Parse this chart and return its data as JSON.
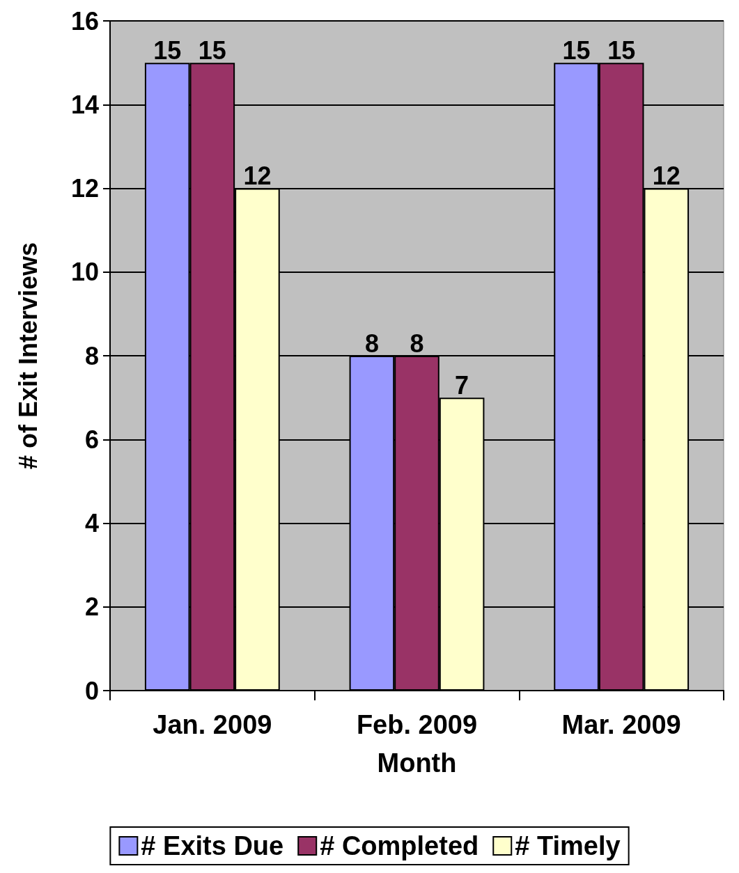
{
  "chart_data": {
    "type": "bar",
    "xlabel": "Month",
    "ylabel": "# of Exit Interviews",
    "categories": [
      "Jan. 2009",
      "Feb. 2009",
      "Mar. 2009"
    ],
    "series": [
      {
        "name": "# Exits Due",
        "color": "#9999ff",
        "values": [
          15,
          8,
          15
        ]
      },
      {
        "name": "# Completed",
        "color": "#993366",
        "values": [
          15,
          8,
          15
        ]
      },
      {
        "name": "# Timely",
        "color": "#ffffcc",
        "values": [
          12,
          7,
          12
        ]
      }
    ],
    "ylim": [
      0,
      16
    ],
    "yticks": [
      0,
      2,
      4,
      6,
      8,
      10,
      12,
      14,
      16
    ],
    "grid": "y",
    "legend": "bottom",
    "data_labels": true
  }
}
